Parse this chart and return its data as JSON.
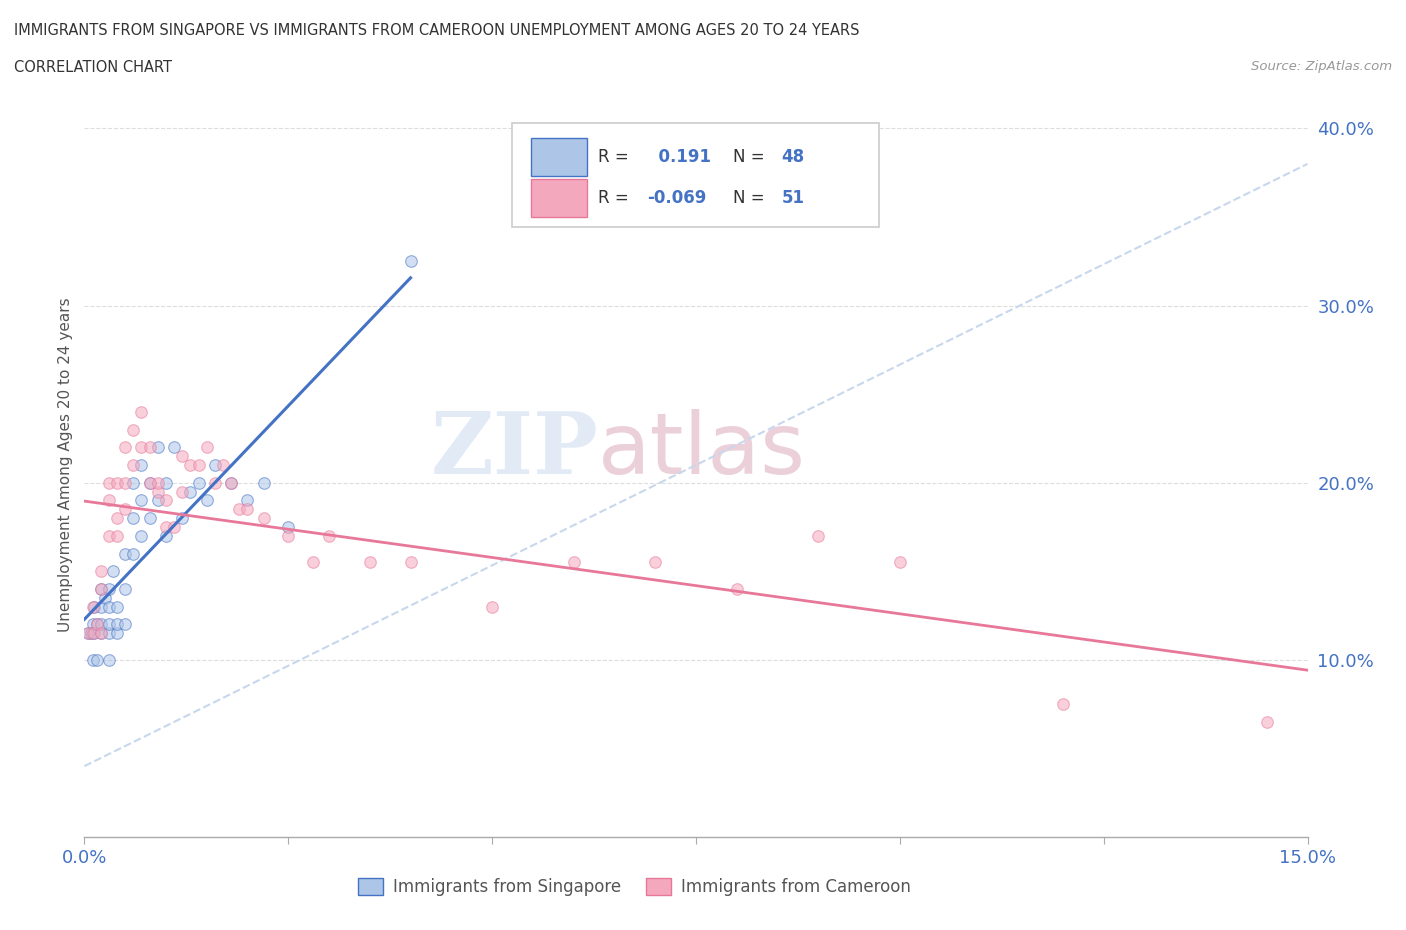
{
  "title_line1": "IMMIGRANTS FROM SINGAPORE VS IMMIGRANTS FROM CAMEROON UNEMPLOYMENT AMONG AGES 20 TO 24 YEARS",
  "title_line2": "CORRELATION CHART",
  "source_text": "Source: ZipAtlas.com",
  "ylabel": "Unemployment Among Ages 20 to 24 years",
  "xlim": [
    0,
    0.15
  ],
  "ylim": [
    0,
    0.42
  ],
  "ytick_positions": [
    0.1,
    0.2,
    0.3,
    0.4
  ],
  "ytick_labels": [
    "10.0%",
    "20.0%",
    "30.0%",
    "40.0%"
  ],
  "xtick_positions": [
    0.0,
    0.025,
    0.05,
    0.075,
    0.1,
    0.125,
    0.15
  ],
  "xtick_labels": [
    "0.0%",
    "",
    "",
    "",
    "",
    "",
    "15.0%"
  ],
  "singapore_color": "#adc6e8",
  "cameroon_color": "#f4a8be",
  "singapore_line_color": "#4472c4",
  "cameroon_line_color": "#e8789a",
  "R_singapore": 0.191,
  "N_singapore": 48,
  "R_cameroon": -0.069,
  "N_cameroon": 51,
  "singapore_x": [
    0.0005,
    0.0008,
    0.001,
    0.001,
    0.0012,
    0.0012,
    0.0015,
    0.0015,
    0.002,
    0.002,
    0.002,
    0.002,
    0.0025,
    0.003,
    0.003,
    0.003,
    0.003,
    0.003,
    0.0035,
    0.004,
    0.004,
    0.004,
    0.005,
    0.005,
    0.005,
    0.006,
    0.006,
    0.006,
    0.007,
    0.007,
    0.007,
    0.008,
    0.008,
    0.009,
    0.009,
    0.01,
    0.01,
    0.011,
    0.012,
    0.013,
    0.014,
    0.015,
    0.016,
    0.018,
    0.02,
    0.022,
    0.025,
    0.04
  ],
  "singapore_y": [
    0.115,
    0.115,
    0.1,
    0.12,
    0.115,
    0.13,
    0.12,
    0.1,
    0.115,
    0.12,
    0.13,
    0.14,
    0.135,
    0.1,
    0.115,
    0.12,
    0.13,
    0.14,
    0.15,
    0.115,
    0.12,
    0.13,
    0.12,
    0.14,
    0.16,
    0.16,
    0.18,
    0.2,
    0.17,
    0.19,
    0.21,
    0.18,
    0.2,
    0.19,
    0.22,
    0.17,
    0.2,
    0.22,
    0.18,
    0.195,
    0.2,
    0.19,
    0.21,
    0.2,
    0.19,
    0.2,
    0.175,
    0.325
  ],
  "cameroon_x": [
    0.0005,
    0.001,
    0.001,
    0.0015,
    0.002,
    0.002,
    0.002,
    0.003,
    0.003,
    0.003,
    0.004,
    0.004,
    0.004,
    0.005,
    0.005,
    0.005,
    0.006,
    0.006,
    0.007,
    0.007,
    0.008,
    0.008,
    0.009,
    0.009,
    0.01,
    0.01,
    0.011,
    0.012,
    0.012,
    0.013,
    0.014,
    0.015,
    0.016,
    0.017,
    0.018,
    0.019,
    0.02,
    0.022,
    0.025,
    0.028,
    0.03,
    0.035,
    0.04,
    0.05,
    0.06,
    0.07,
    0.08,
    0.09,
    0.1,
    0.12,
    0.145
  ],
  "cameroon_y": [
    0.115,
    0.115,
    0.13,
    0.12,
    0.115,
    0.14,
    0.15,
    0.17,
    0.19,
    0.2,
    0.17,
    0.18,
    0.2,
    0.185,
    0.2,
    0.22,
    0.21,
    0.23,
    0.24,
    0.22,
    0.2,
    0.22,
    0.195,
    0.2,
    0.175,
    0.19,
    0.175,
    0.195,
    0.215,
    0.21,
    0.21,
    0.22,
    0.2,
    0.21,
    0.2,
    0.185,
    0.185,
    0.18,
    0.17,
    0.155,
    0.17,
    0.155,
    0.155,
    0.13,
    0.155,
    0.155,
    0.14,
    0.17,
    0.155,
    0.075,
    0.065
  ],
  "watermark_zip": "ZIP",
  "watermark_atlas": "atlas",
  "legend_label_singapore": "Immigrants from Singapore",
  "legend_label_cameroon": "Immigrants from Cameroon",
  "marker_size": 70,
  "marker_alpha": 0.55
}
